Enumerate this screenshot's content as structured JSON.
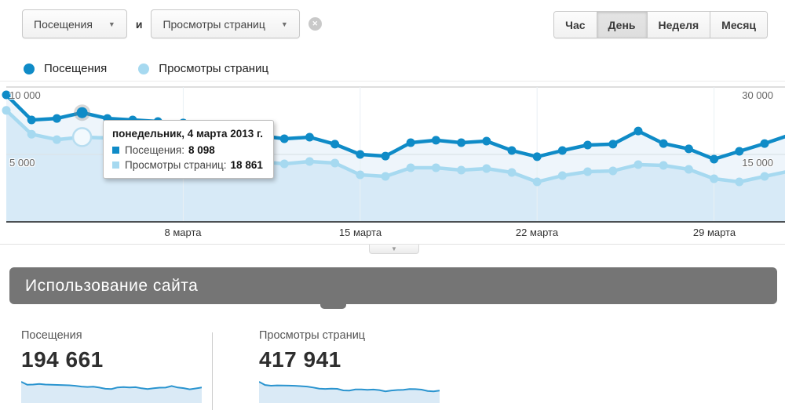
{
  "controls": {
    "metric_a_label": "Посещения",
    "conjunction": "и",
    "metric_b_label": "Просмотры страниц",
    "remove_symbol": "✕",
    "caret_symbol": "▼",
    "granularity": [
      {
        "label": "Час",
        "active": false
      },
      {
        "label": "День",
        "active": true
      },
      {
        "label": "Неделя",
        "active": false
      },
      {
        "label": "Месяц",
        "active": false
      }
    ]
  },
  "legend": [
    {
      "label": "Посещения",
      "color": "#0f8bc7"
    },
    {
      "label": "Просмотры страниц",
      "color": "#a6d9f0"
    }
  ],
  "chart_data": {
    "type": "line",
    "x_unit": "day of March 2013",
    "x_tick_days": [
      8,
      15,
      22,
      29
    ],
    "x_tick_labels": [
      "8 марта",
      "15 марта",
      "22 марта",
      "29 марта"
    ],
    "axes": {
      "left": {
        "metric": "Посещения",
        "ticks": [
          {
            "v": 5000,
            "label": "5 000"
          },
          {
            "v": 10000,
            "label": "10 000"
          }
        ]
      },
      "right": {
        "metric": "Просмотры страниц",
        "ticks": [
          {
            "v": 15000,
            "label": "15 000"
          },
          {
            "v": 30000,
            "label": "30 000"
          }
        ]
      }
    },
    "series": [
      {
        "name": "Посещения",
        "axis": "left",
        "color": "#0f8bc7",
        "fill": "#eef5fb",
        "values": [
          9420,
          7560,
          7670,
          8098,
          7670,
          7560,
          7440,
          7330,
          7210,
          6870,
          6400,
          6160,
          6280,
          5760,
          5000,
          4880,
          5870,
          6050,
          5870,
          5990,
          5290,
          4830,
          5290,
          5700,
          5760,
          6740,
          5810,
          5410,
          4650,
          5230,
          5810,
          6450
        ]
      },
      {
        "name": "Просмотры страниц",
        "axis": "right",
        "color": "#a6d9f0",
        "fill": "#d7eaf7",
        "values": [
          24800,
          19500,
          18300,
          18861,
          18660,
          18400,
          18100,
          17500,
          16800,
          15300,
          13430,
          12900,
          13430,
          13080,
          10470,
          10120,
          12030,
          12030,
          11510,
          11860,
          10990,
          8900,
          10290,
          11160,
          11340,
          12730,
          12560,
          11690,
          9590,
          8900,
          10120,
          11300
        ]
      }
    ],
    "hover_index": 3,
    "grid": true,
    "legend_position": "top-left"
  },
  "tooltip": {
    "title": "понедельник, 4 марта 2013 г.",
    "rows": [
      {
        "label": "Посещения:",
        "value": "8 098",
        "color": "#0f8bc7"
      },
      {
        "label": "Просмотры страниц:",
        "value": "18 861",
        "color": "#a6d9f0"
      }
    ]
  },
  "section_header": {
    "title": "Использование сайта"
  },
  "summary": {
    "items": [
      {
        "label": "Посещения",
        "value": "194 661"
      },
      {
        "label": "Просмотры страниц",
        "value": "417 941"
      }
    ]
  },
  "spark_color": "#2a94cf",
  "spark_fill": "#daeaf6"
}
